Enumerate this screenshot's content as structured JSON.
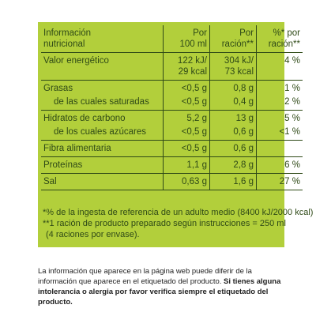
{
  "nutrition_label": {
    "header": {
      "col0": [
        "Información",
        "nutricional"
      ],
      "col1": [
        "Por",
        "100 ml"
      ],
      "col2": [
        "Por",
        "ración**"
      ],
      "col3": [
        "%* por",
        "ración**"
      ]
    },
    "rows": [
      {
        "name": "Valor energético",
        "sub": "",
        "v100": [
          "122 kJ/",
          "29 kcal"
        ],
        "vrac": [
          "304 kJ/",
          "73 kcal"
        ],
        "pct": [
          "4 %",
          ""
        ]
      },
      {
        "name": "Grasas",
        "v100": "<0,5 g",
        "vrac": "0,8 g",
        "pct": "1 %"
      },
      {
        "name": "de las cuales saturadas",
        "v100": "<0,5 g",
        "vrac": "0,4 g",
        "pct": "2 %"
      },
      {
        "name": "Hidratos de carbono",
        "v100": "5,2 g",
        "vrac": "13 g",
        "pct": "5 %"
      },
      {
        "name": "de los cuales azúcares",
        "v100": "<0,5 g",
        "vrac": "0,6 g",
        "pct": "<1 %"
      },
      {
        "name": "Fibra alimentaria",
        "v100": "<0,5 g",
        "vrac": "0,6 g",
        "pct": ""
      },
      {
        "name": "Proteínas",
        "v100": "1,1 g",
        "vrac": "2,8 g",
        "pct": "6 %"
      },
      {
        "name": "Sal",
        "v100": "0,63 g",
        "vrac": "1,6 g",
        "pct": "27 %"
      }
    ],
    "notes": [
      "*% de la ingesta de referencia de un adulto medio (8400 kJ/2000 kcal)",
      "**1 ración de producto preparado según instrucciones = 250 ml",
      "(4 raciones por envase)."
    ],
    "colors": {
      "panel": "#b2cf3b",
      "text": "#2f4a17"
    }
  },
  "disclaimer": {
    "normal": "La información que aparece en la página web puede diferir de la información que aparece en el etiquetado del producto.",
    "bold": "Si tienes alguna intolerancia o alergia por favor verifica siempre el etiquetado del producto."
  }
}
